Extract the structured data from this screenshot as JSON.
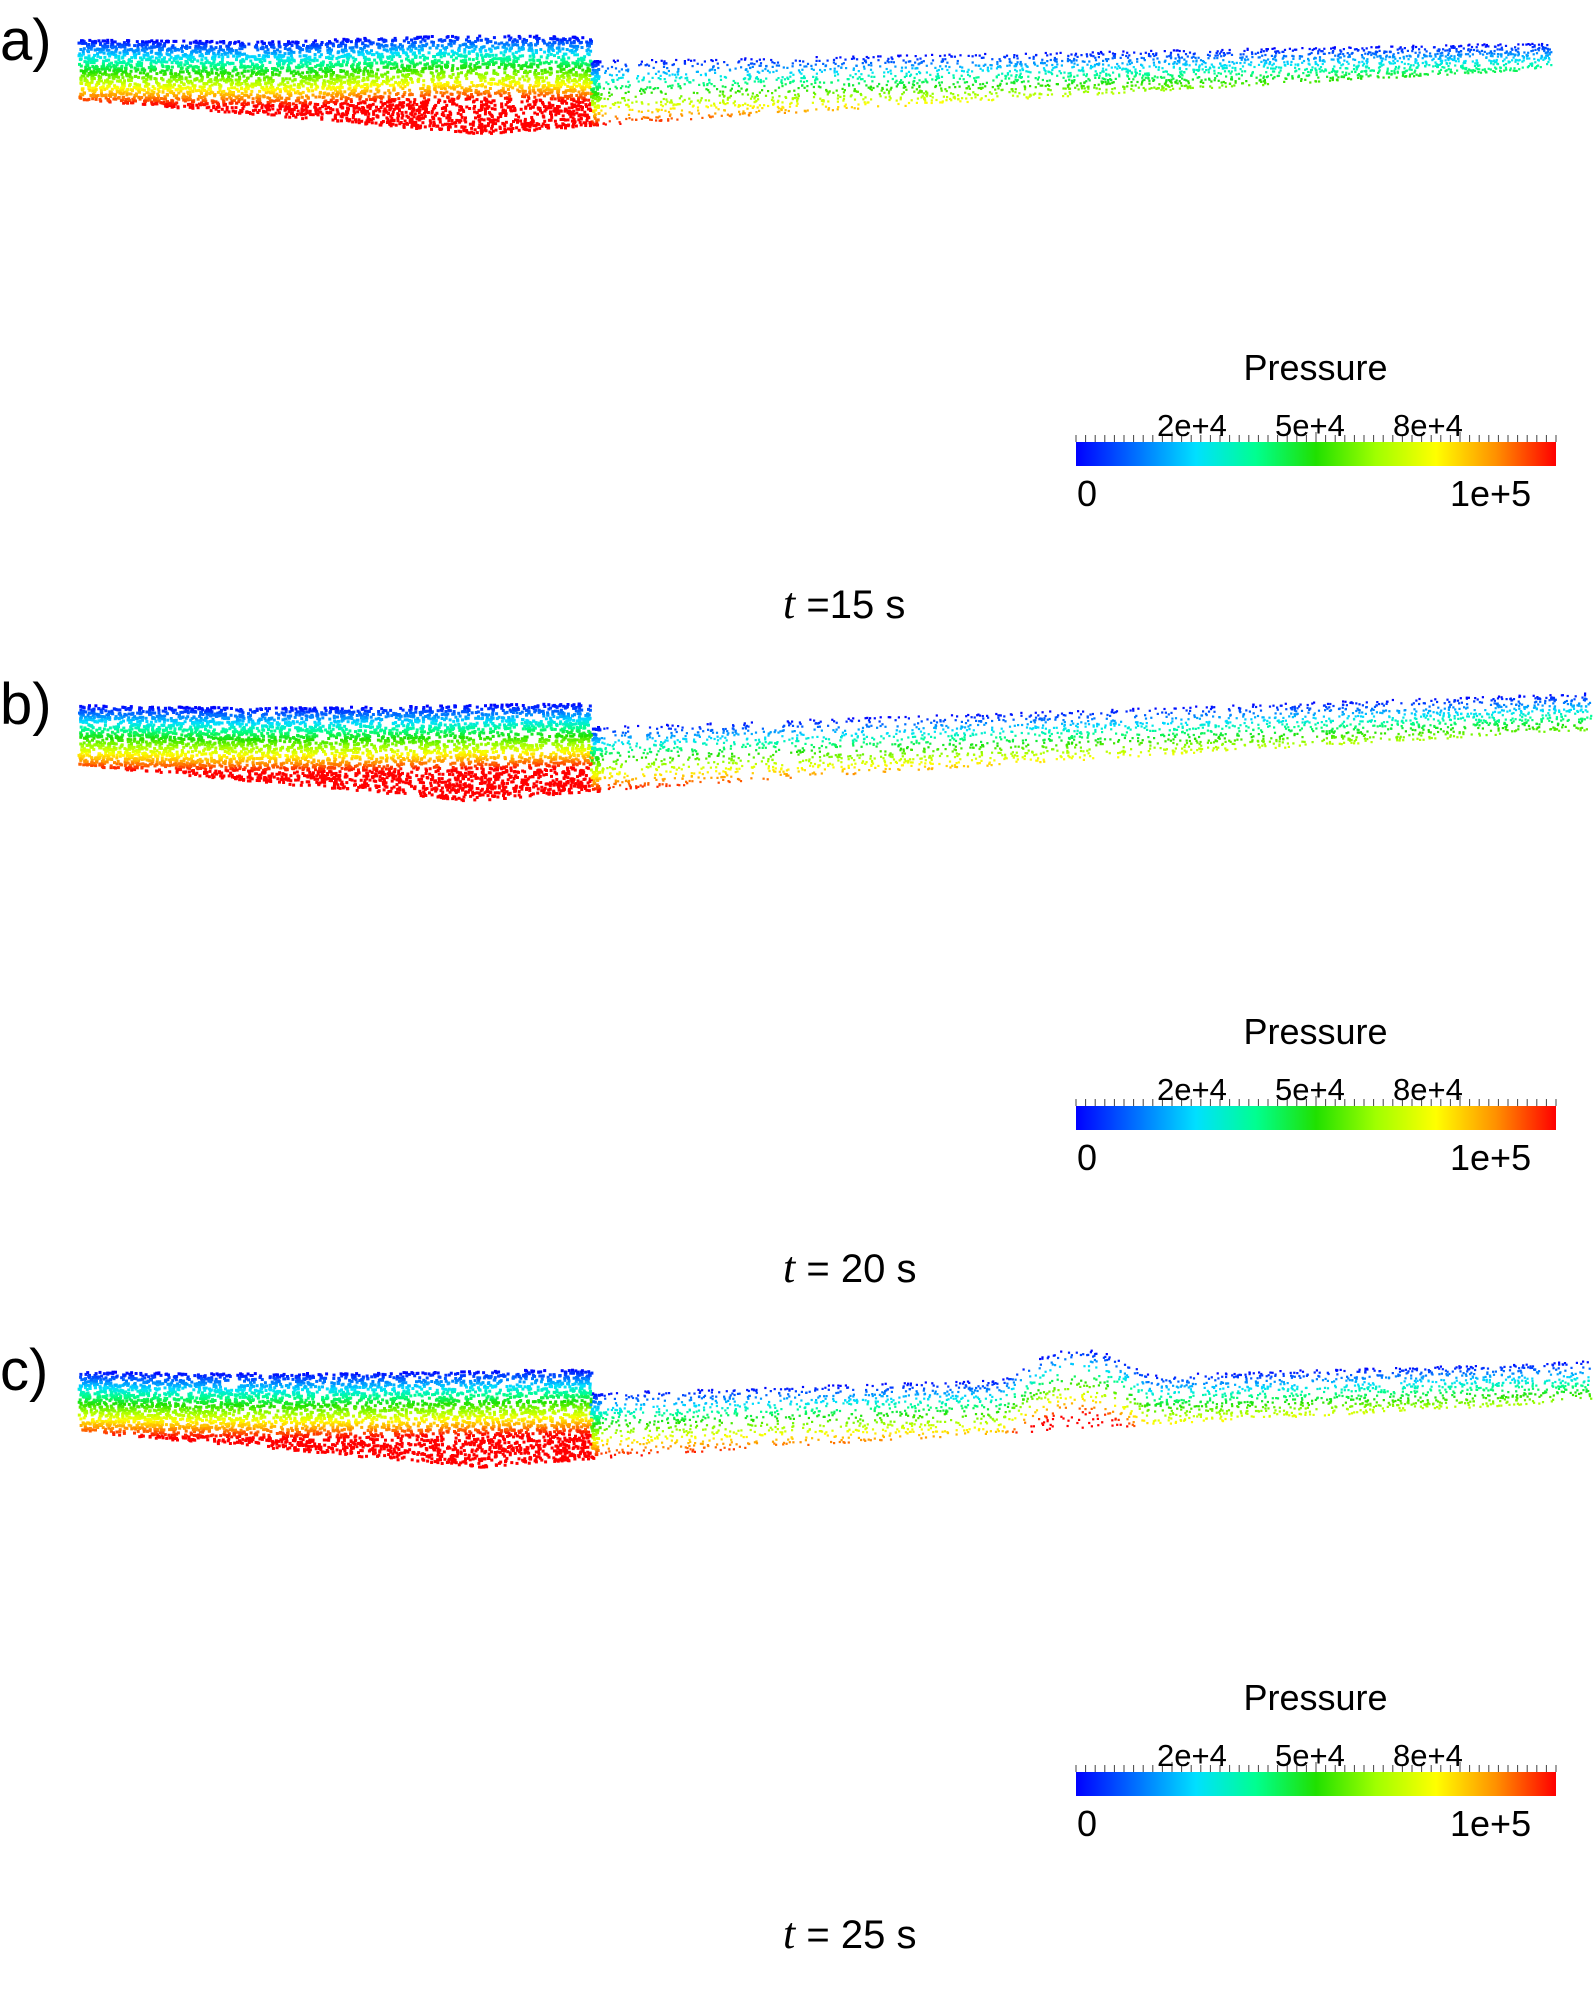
{
  "colors": {
    "colormap": [
      "#0000ff",
      "#0070ff",
      "#00e0ff",
      "#00ff90",
      "#20e000",
      "#a0ff00",
      "#ffff00",
      "#ff9000",
      "#ff0000"
    ]
  },
  "panels": [
    {
      "label": "a)",
      "time_label": "t",
      "time_value": "=15 s",
      "legend": {
        "title": "Pressure",
        "tick_labels": [
          "2e+4",
          "5e+4",
          "8e+4"
        ],
        "min_label": "0",
        "max_label": "1e+5"
      }
    },
    {
      "label": "b)",
      "time_label": "t",
      "time_value": "= 20 s",
      "legend": {
        "title": "Pressure",
        "tick_labels": [
          "2e+4",
          "5e+4",
          "8e+4"
        ],
        "min_label": "0",
        "max_label": "1e+5"
      }
    },
    {
      "label": "c)",
      "time_label": "t",
      "time_value": "= 25 s",
      "legend": {
        "title": "Pressure",
        "tick_labels": [
          "2e+4",
          "5e+4",
          "8e+4"
        ],
        "min_label": "0",
        "max_label": "1e+5"
      }
    }
  ]
}
